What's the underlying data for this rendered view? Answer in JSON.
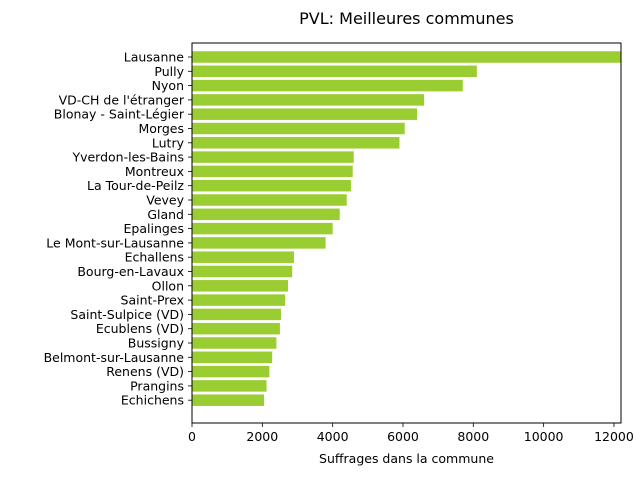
{
  "chart_data": {
    "type": "bar",
    "orientation": "horizontal",
    "title": "PVL: Meilleures communes",
    "xlabel": "Suffrages dans la commune",
    "ylabel": "",
    "xlim": [
      0,
      12200
    ],
    "xticks": [
      0,
      2000,
      4000,
      6000,
      8000,
      10000,
      12000
    ],
    "bar_color": "#9acd32",
    "grid": false,
    "categories": [
      "Lausanne",
      "Pully",
      "Nyon",
      "VD-CH de l'étranger",
      "Blonay - Saint-Légier",
      "Morges",
      "Lutry",
      "Yverdon-les-Bains",
      "Montreux",
      "La Tour-de-Peilz",
      "Vevey",
      "Gland",
      "Epalinges",
      "Le Mont-sur-Lausanne",
      "Echallens",
      "Bourg-en-Lavaux",
      "Ollon",
      "Saint-Prex",
      "Saint-Sulpice (VD)",
      "Ecublens (VD)",
      "Bussigny",
      "Belmont-sur-Lausanne",
      "Renens (VD)",
      "Prangins",
      "Echichens"
    ],
    "values": [
      12200,
      8100,
      7700,
      6600,
      6400,
      6050,
      5900,
      4600,
      4570,
      4520,
      4400,
      4200,
      4000,
      3800,
      2900,
      2850,
      2730,
      2650,
      2530,
      2500,
      2400,
      2280,
      2200,
      2120,
      2050
    ]
  }
}
